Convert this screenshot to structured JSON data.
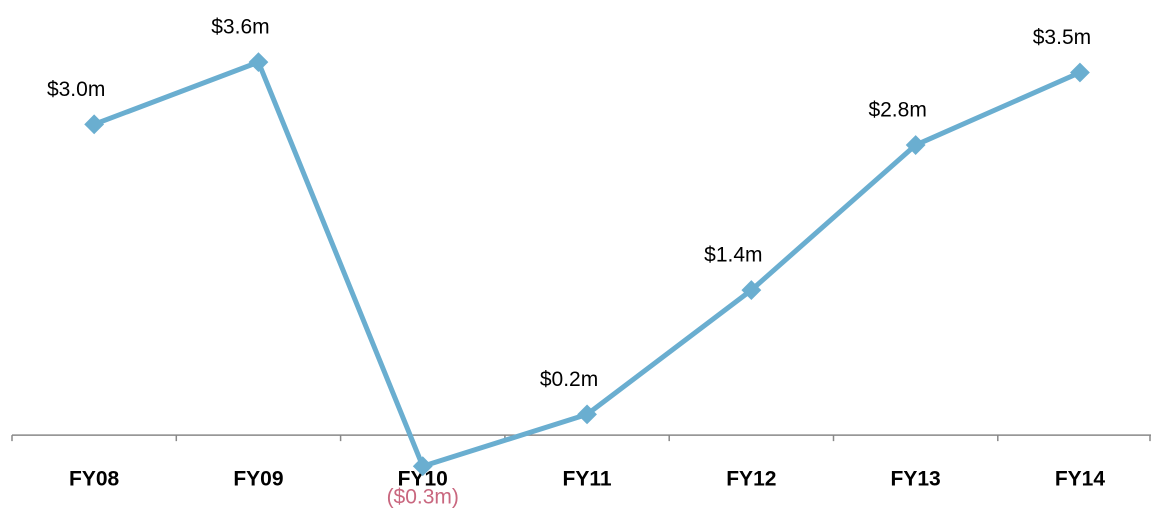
{
  "chart_data": {
    "type": "line",
    "categories": [
      "FY08",
      "FY09",
      "FY10",
      "FY11",
      "FY12",
      "FY13",
      "FY14"
    ],
    "series": [
      {
        "color": "#6aaed0",
        "values": [
          3.0,
          3.6,
          -0.3,
          0.2,
          1.4,
          2.8,
          3.5
        ],
        "value_labels": [
          "$3.0m",
          "$3.6m",
          "($0.3m)",
          "$0.2m",
          "$1.4m",
          "$2.8m",
          "$3.5m"
        ]
      }
    ],
    "ylim": [
      -0.8,
      4.2
    ],
    "negative_label_color": "#c9677f",
    "axis_color": "#888888"
  }
}
